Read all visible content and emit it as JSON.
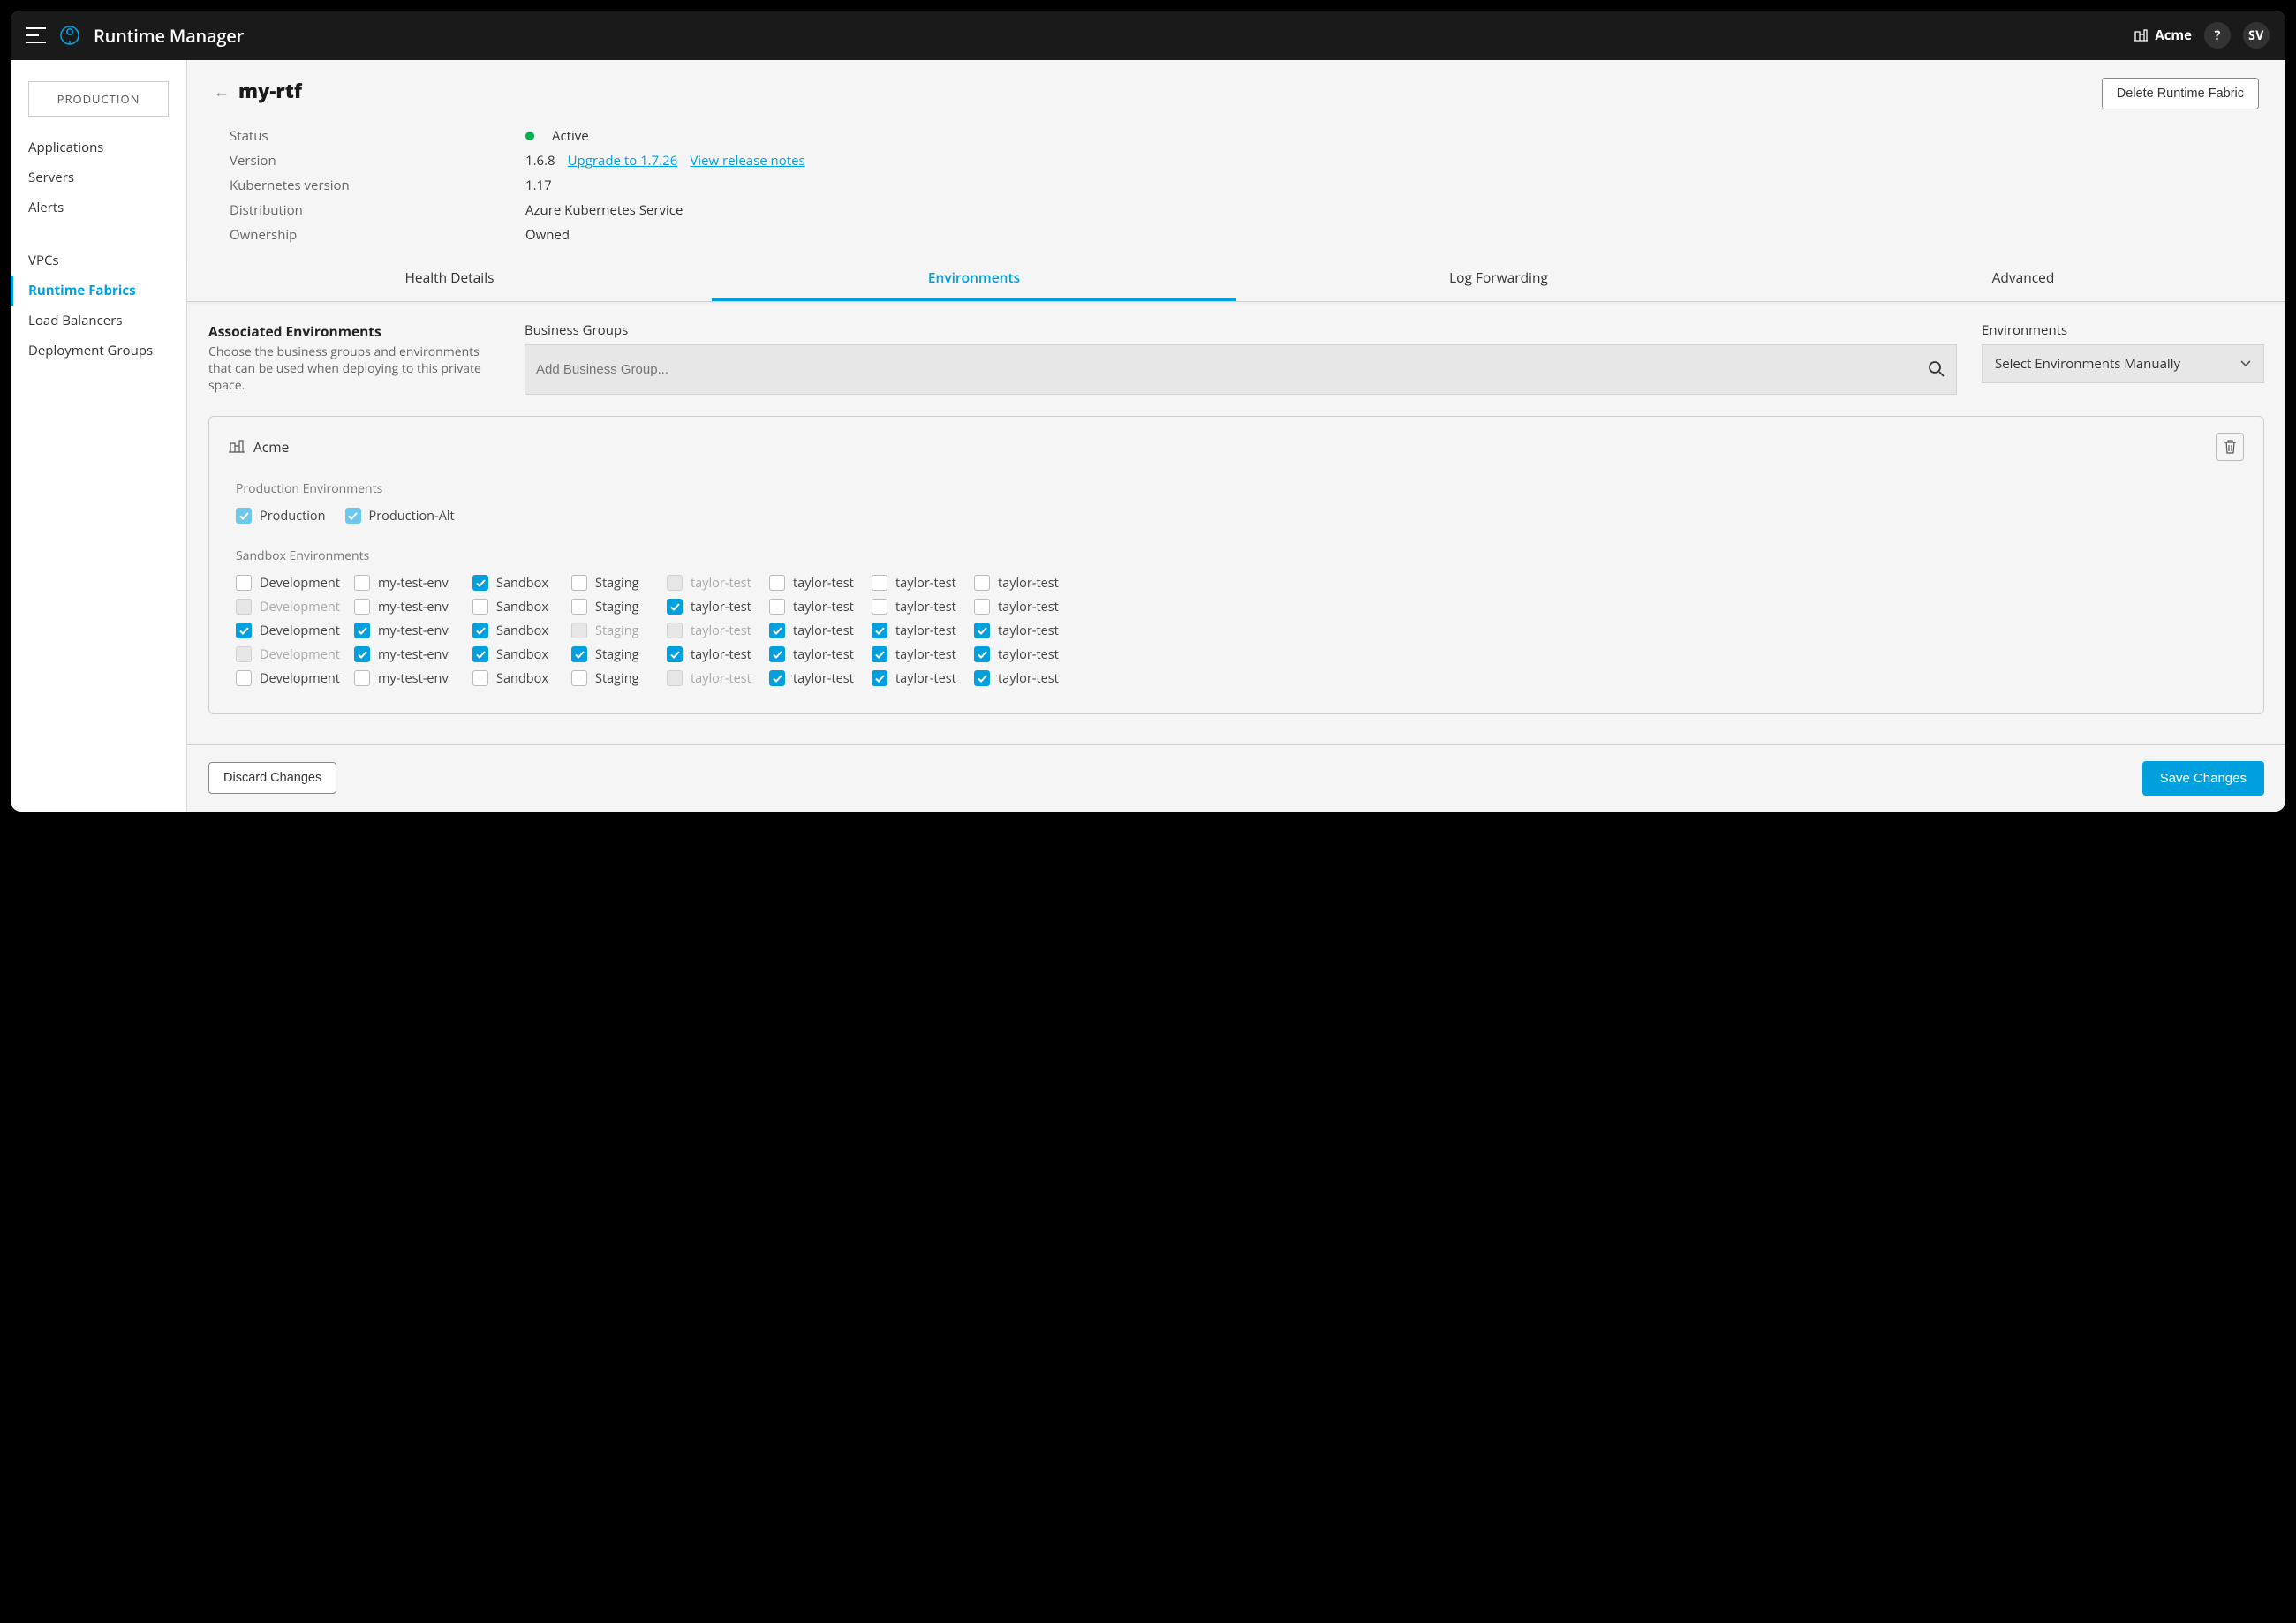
{
  "header": {
    "app_title": "Runtime Manager",
    "org_name": "Acme",
    "help_label": "?",
    "user_initials": "SV"
  },
  "sidebar": {
    "env_badge": "PRODUCTION",
    "section1": [
      "Applications",
      "Servers",
      "Alerts"
    ],
    "section2": [
      "VPCs",
      "Runtime Fabrics",
      "Load Balancers",
      "Deployment Groups"
    ],
    "active": "Runtime Fabrics"
  },
  "page": {
    "title": "my-rtf",
    "delete_btn": "Delete Runtime Fabric"
  },
  "details": {
    "status_label": "Status",
    "status_value": "Active",
    "version_label": "Version",
    "version_value": "1.6.8",
    "upgrade_link": "Upgrade to 1.7.26",
    "release_notes_link": "View release notes",
    "k8s_label": "Kubernetes version",
    "k8s_value": "1.17",
    "dist_label": "Distribution",
    "dist_value": "Azure Kubernetes Service",
    "own_label": "Ownership",
    "own_value": "Owned"
  },
  "tabs": [
    "Health Details",
    "Environments",
    "Log Forwarding",
    "Advanced"
  ],
  "active_tab": "Environments",
  "env_section": {
    "title": "Associated Environments",
    "desc": "Choose the business groups and environments that can be used when deploying to this private space.",
    "bg_label": "Business Groups",
    "bg_placeholder": "Add Business Group...",
    "env_label": "Environments",
    "env_select_text": "Select Environments Manually"
  },
  "card": {
    "org_name": "Acme",
    "prod_label": "Production Environments",
    "sandbox_label": "Sandbox Environments",
    "prod_envs": [
      {
        "label": "Production",
        "state": "light"
      },
      {
        "label": "Production-Alt",
        "state": "light"
      }
    ],
    "columns": [
      "Development",
      "my-test-env",
      "Sandbox",
      "Staging",
      "taylor-test",
      "taylor-test",
      "taylor-test",
      "taylor-test"
    ],
    "rows": [
      [
        {
          "label": "Development",
          "state": "unchecked"
        },
        {
          "label": "my-test-env",
          "state": "unchecked"
        },
        {
          "label": "Sandbox",
          "state": "checked"
        },
        {
          "label": "Staging",
          "state": "unchecked"
        },
        {
          "label": "taylor-test",
          "state": "disabled"
        },
        {
          "label": "taylor-test",
          "state": "unchecked"
        },
        {
          "label": "taylor-test",
          "state": "unchecked"
        },
        {
          "label": "taylor-test",
          "state": "unchecked"
        }
      ],
      [
        {
          "label": "Development",
          "state": "disabled"
        },
        {
          "label": "my-test-env",
          "state": "unchecked"
        },
        {
          "label": "Sandbox",
          "state": "unchecked"
        },
        {
          "label": "Staging",
          "state": "unchecked"
        },
        {
          "label": "taylor-test",
          "state": "checked"
        },
        {
          "label": "taylor-test",
          "state": "unchecked"
        },
        {
          "label": "taylor-test",
          "state": "unchecked"
        },
        {
          "label": "taylor-test",
          "state": "unchecked"
        }
      ],
      [
        {
          "label": "Development",
          "state": "checked"
        },
        {
          "label": "my-test-env",
          "state": "checked"
        },
        {
          "label": "Sandbox",
          "state": "checked"
        },
        {
          "label": "Staging",
          "state": "disabled"
        },
        {
          "label": "taylor-test",
          "state": "disabled"
        },
        {
          "label": "taylor-test",
          "state": "checked"
        },
        {
          "label": "taylor-test",
          "state": "checked"
        },
        {
          "label": "taylor-test",
          "state": "checked"
        }
      ],
      [
        {
          "label": "Development",
          "state": "disabled"
        },
        {
          "label": "my-test-env",
          "state": "checked"
        },
        {
          "label": "Sandbox",
          "state": "checked"
        },
        {
          "label": "Staging",
          "state": "checked"
        },
        {
          "label": "taylor-test",
          "state": "checked"
        },
        {
          "label": "taylor-test",
          "state": "checked"
        },
        {
          "label": "taylor-test",
          "state": "checked"
        },
        {
          "label": "taylor-test",
          "state": "checked"
        }
      ],
      [
        {
          "label": "Development",
          "state": "unchecked"
        },
        {
          "label": "my-test-env",
          "state": "unchecked"
        },
        {
          "label": "Sandbox",
          "state": "unchecked"
        },
        {
          "label": "Staging",
          "state": "unchecked"
        },
        {
          "label": "taylor-test",
          "state": "disabled"
        },
        {
          "label": "taylor-test",
          "state": "checked"
        },
        {
          "label": "taylor-test",
          "state": "checked"
        },
        {
          "label": "taylor-test",
          "state": "checked"
        }
      ]
    ]
  },
  "footer": {
    "discard": "Discard Changes",
    "save": "Save Changes"
  },
  "colors": {
    "accent": "#00a0df",
    "status_active": "#00b050"
  }
}
